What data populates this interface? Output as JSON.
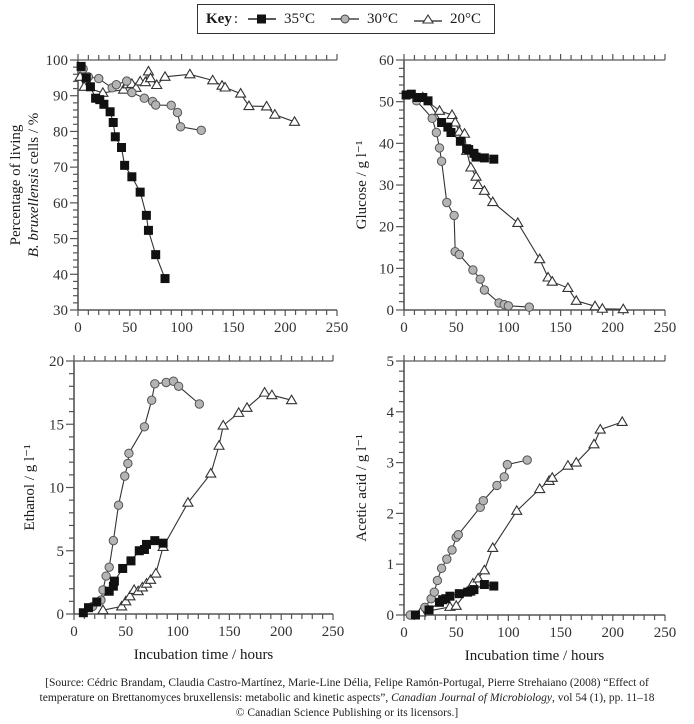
{
  "legend": {
    "title": "Key",
    "entries": [
      {
        "label": "35°C",
        "marker": "square-filled",
        "color": "#111111"
      },
      {
        "label": "30°C",
        "marker": "circle-grey",
        "color": "#b4b4b4"
      },
      {
        "label": "20°C",
        "marker": "triangle-open",
        "color": "#ffffff"
      }
    ]
  },
  "source": {
    "line1": "[Source: Cédric Brandam, Claudia Castro-Martínez, Marie-Line Délia, Felipe Ramón-Portugal, Pierre Strehaiano (2008) “Effect of",
    "line2_pre": "temperature on Brettanomyces bruxellensis: metabolic and kinetic aspects”, ",
    "line2_journal": "Canadian Journal of Microbiology",
    "line2_post": ", vol 54 (1), pp. 11–18",
    "line3": "© Canadian Science Publishing or its licensors.]"
  },
  "chart_data": [
    {
      "id": "viability",
      "type": "line",
      "title": "",
      "xlabel": "",
      "ylabel_line1": "Percentage of living",
      "ylabel_line2_italic": "B. bruxellensis",
      "ylabel_line2_rest": " cells / %",
      "xlim": [
        0,
        250
      ],
      "ylim": [
        30,
        100
      ],
      "xticks": [
        0,
        50,
        100,
        150,
        200,
        250
      ],
      "yticks": [
        30,
        40,
        50,
        60,
        70,
        80,
        90,
        100
      ],
      "grid": false,
      "series": [
        {
          "name": "35°C",
          "x": [
            3,
            8,
            12,
            17,
            21,
            25,
            31,
            34,
            36,
            42,
            45,
            52,
            60,
            66,
            68,
            75,
            84
          ],
          "y": [
            98.2,
            95,
            92.5,
            89.3,
            88.9,
            87.6,
            85.5,
            82.5,
            78.5,
            75.5,
            70.5,
            67.3,
            63,
            56.5,
            52.3,
            45.5,
            38.8
          ]
        },
        {
          "name": "30°C",
          "x": [
            5,
            10,
            20,
            33,
            37,
            47,
            52,
            64,
            72,
            75,
            90,
            96,
            99,
            119
          ],
          "y": [
            97.5,
            95.3,
            94.8,
            92.2,
            93.1,
            94.1,
            90.9,
            89.3,
            88.4,
            87.4,
            87.3,
            85.3,
            81.3,
            80.3
          ]
        },
        {
          "name": "20°C",
          "x": [
            2,
            6,
            24,
            44,
            48,
            52,
            56,
            60,
            65,
            68,
            70,
            76,
            84,
            108,
            130,
            139,
            142,
            157,
            165,
            182,
            190,
            209
          ],
          "y": [
            95.3,
            92.5,
            90.8,
            91.7,
            93.2,
            93.3,
            92.2,
            94,
            93.8,
            96.8,
            94.9,
            93,
            95.3,
            96,
            94.3,
            92.8,
            92.3,
            90.6,
            87.1,
            87,
            84.7,
            82.7
          ]
        }
      ]
    },
    {
      "id": "glucose",
      "type": "line",
      "xlabel": "",
      "ylabel": "Glucose / g l⁻¹",
      "xlim": [
        0,
        250
      ],
      "ylim": [
        0,
        60
      ],
      "xticks": [
        0,
        50,
        100,
        150,
        200,
        250
      ],
      "yticks": [
        0,
        10,
        20,
        30,
        40,
        50,
        60
      ],
      "grid": false,
      "series": [
        {
          "name": "35°C",
          "x": [
            2,
            7,
            13,
            18,
            23,
            36,
            42,
            45,
            54,
            60,
            62,
            67,
            69,
            77,
            86
          ],
          "y": [
            51.6,
            51.8,
            51,
            51,
            50.2,
            45,
            43.9,
            42.6,
            40.5,
            38.7,
            38.5,
            37.6,
            36.7,
            36.5,
            36.2
          ]
        },
        {
          "name": "30°C",
          "x": [
            12,
            27,
            31,
            34,
            36,
            41,
            48,
            49,
            53,
            66,
            73,
            77,
            91,
            96,
            100,
            120
          ],
          "y": [
            50.2,
            46,
            42.6,
            38.9,
            35.7,
            25.8,
            22.7,
            14,
            13.3,
            9.6,
            7.4,
            4.8,
            1.7,
            1.3,
            1,
            0.7
          ]
        },
        {
          "name": "20°C",
          "x": [
            18,
            34,
            46,
            49,
            53,
            58,
            60,
            64,
            69,
            71,
            77,
            85,
            109,
            130,
            138,
            142,
            157,
            165,
            183,
            190,
            210
          ],
          "y": [
            51,
            47.8,
            46.8,
            45,
            42.8,
            42.3,
            38.2,
            34.2,
            32,
            30,
            28.6,
            25.9,
            20.9,
            12.2,
            7.8,
            6.8,
            5.3,
            2.2,
            0.9,
            0.3,
            0.2
          ]
        }
      ]
    },
    {
      "id": "ethanol",
      "type": "line",
      "xlabel": "Incubation time / hours",
      "ylabel": "Ethanol / g l⁻¹",
      "xlim": [
        0,
        250
      ],
      "ylim": [
        0,
        20
      ],
      "xticks": [
        0,
        50,
        100,
        150,
        200,
        250
      ],
      "yticks": [
        0,
        5,
        10,
        15,
        20
      ],
      "grid": false,
      "series": [
        {
          "name": "35°C",
          "x": [
            9,
            14,
            22,
            34,
            38,
            39,
            47,
            55,
            63,
            68,
            70,
            78,
            86
          ],
          "y": [
            0.1,
            0.5,
            0.95,
            1.8,
            2.2,
            2.6,
            3.6,
            4.2,
            5,
            5.1,
            5.5,
            5.8,
            5.6
          ]
        },
        {
          "name": "30°C",
          "x": [
            18,
            26,
            28,
            31,
            34,
            38,
            43,
            49,
            52,
            53,
            68,
            75,
            78,
            89,
            96,
            101,
            121
          ],
          "y": [
            0.6,
            1.1,
            1.9,
            3,
            3.7,
            5.8,
            8.6,
            10.9,
            11.9,
            12.7,
            14.8,
            16.9,
            18.2,
            18.3,
            18.4,
            18,
            16.6
          ]
        },
        {
          "name": "20°C",
          "x": [
            28,
            46,
            50,
            54,
            58,
            62,
            66,
            70,
            74,
            79,
            86,
            110,
            132,
            140,
            144,
            159,
            167,
            184,
            191,
            210
          ],
          "y": [
            0.3,
            0.6,
            1.0,
            1.4,
            1.9,
            1.8,
            2.1,
            2.4,
            2.7,
            3.2,
            5.3,
            8.8,
            11.1,
            13.3,
            14.9,
            15.9,
            16.3,
            17.5,
            17.3,
            16.9
          ]
        }
      ]
    },
    {
      "id": "acetic-acid",
      "type": "line",
      "xlabel": "Incubation time / hours",
      "ylabel": "Acetic acid / g l⁻¹",
      "xlim": [
        0,
        250
      ],
      "ylim": [
        0,
        5
      ],
      "xticks": [
        0,
        50,
        100,
        150,
        200,
        250
      ],
      "yticks": [
        0,
        1,
        2,
        3,
        4,
        5
      ],
      "grid": false,
      "series": [
        {
          "name": "35°C",
          "x": [
            11,
            24,
            34,
            37,
            40,
            44,
            53,
            61,
            64,
            67,
            77,
            86
          ],
          "y": [
            0,
            0.1,
            0.25,
            0.3,
            0.32,
            0.37,
            0.42,
            0.45,
            0.47,
            0.5,
            0.6,
            0.57
          ]
        },
        {
          "name": "30°C",
          "x": [
            6,
            20,
            26,
            29,
            32,
            36,
            41,
            46,
            50,
            52,
            73,
            76,
            89,
            96,
            99,
            118
          ],
          "y": [
            0,
            0.15,
            0.32,
            0.45,
            0.68,
            0.92,
            1.1,
            1.28,
            1.53,
            1.58,
            2.12,
            2.25,
            2.55,
            2.72,
            2.96,
            3.05
          ]
        },
        {
          "name": "20°C",
          "x": [
            16,
            44,
            50,
            66,
            71,
            77,
            85,
            108,
            130,
            139,
            142,
            157,
            165,
            182,
            188,
            209
          ],
          "y": [
            0.05,
            0.16,
            0.18,
            0.62,
            0.72,
            0.88,
            1.32,
            2.05,
            2.48,
            2.64,
            2.7,
            2.94,
            3,
            3.36,
            3.65,
            3.8
          ]
        }
      ]
    }
  ]
}
